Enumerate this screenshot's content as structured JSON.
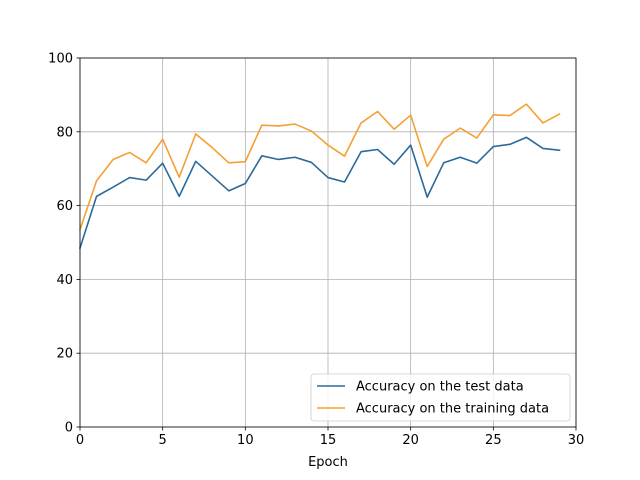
{
  "chart_data": {
    "type": "line",
    "title": "",
    "xlabel": "Epoch",
    "ylabel": "",
    "xlim": [
      0,
      30
    ],
    "ylim": [
      0,
      100
    ],
    "xticks": [
      0,
      5,
      10,
      15,
      20,
      25,
      30
    ],
    "yticks": [
      0,
      20,
      40,
      60,
      80,
      100
    ],
    "grid": true,
    "legend_position": "lower-right",
    "x": [
      0,
      1,
      2,
      3,
      4,
      5,
      6,
      7,
      8,
      9,
      10,
      11,
      12,
      13,
      14,
      15,
      16,
      17,
      18,
      19,
      20,
      21,
      22,
      23,
      24,
      25,
      26,
      27,
      28,
      29
    ],
    "series": [
      {
        "name": "Accuracy on the test data",
        "color": "#2b6a9b",
        "values": [
          48.5,
          62.5,
          65.0,
          67.6,
          66.9,
          71.5,
          62.5,
          72.0,
          68.0,
          64.0,
          66.0,
          73.5,
          72.5,
          73.1,
          71.7,
          67.6,
          66.4,
          74.6,
          75.2,
          71.2,
          76.4,
          62.3,
          71.6,
          73.1,
          71.5,
          76.0,
          76.6,
          78.5,
          75.5,
          75.0
        ]
      },
      {
        "name": "Accuracy on the training data",
        "color": "#f5a033",
        "values": [
          53.5,
          66.7,
          72.5,
          74.4,
          71.6,
          78.0,
          67.7,
          79.4,
          75.7,
          71.6,
          71.9,
          81.8,
          81.6,
          82.1,
          80.2,
          76.4,
          73.4,
          82.4,
          85.5,
          80.7,
          84.5,
          70.6,
          78.0,
          81.0,
          78.3,
          84.6,
          84.4,
          87.5,
          82.4,
          84.8
        ]
      }
    ]
  }
}
